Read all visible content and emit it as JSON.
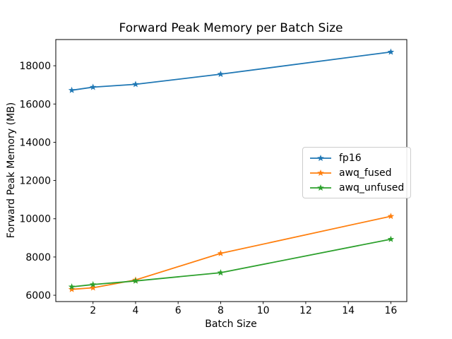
{
  "chart_data": {
    "type": "line",
    "title": "Forward Peak Memory per Batch Size",
    "xlabel": "Batch Size",
    "ylabel": "Forward Peak Memory (MB)",
    "x": [
      1,
      2,
      4,
      8,
      16
    ],
    "series": [
      {
        "name": "fp16",
        "color": "#1f77b4",
        "values": [
          16720,
          16880,
          17030,
          17560,
          18720
        ]
      },
      {
        "name": "awq_fused",
        "color": "#ff7f0e",
        "values": [
          6310,
          6390,
          6800,
          8190,
          10130
        ]
      },
      {
        "name": "awq_unfused",
        "color": "#2ca02c",
        "values": [
          6440,
          6560,
          6750,
          7180,
          8930
        ]
      }
    ],
    "xticks": [
      2,
      4,
      6,
      8,
      10,
      12,
      14,
      16
    ],
    "yticks": [
      6000,
      8000,
      10000,
      12000,
      14000,
      16000,
      18000
    ],
    "xlim": [
      0.25,
      16.75
    ],
    "ylim": [
      5670,
      19370
    ],
    "marker": "star",
    "grid": false,
    "legend_position": "center-right",
    "spine_color": "#000000",
    "background": "#ffffff"
  }
}
